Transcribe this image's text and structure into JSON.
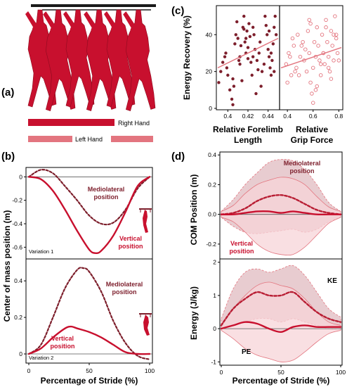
{
  "figure": {
    "colors": {
      "red": "#c8102e",
      "dark_red": "#7d1f2c",
      "pink": "#e3757f",
      "light_pink": "#f4c4c8",
      "band_dark": "#d6a3aa",
      "band_light": "#f7d4d8",
      "grid": "#000000"
    }
  },
  "panel_a": {
    "label": "(a)",
    "legend": {
      "right_hand": "Right Hand",
      "left_hand": "Left Hand"
    }
  },
  "panel_b": {
    "label": "(b)",
    "ylabel": "Center of mass position (m)",
    "xlabel": "Percentage of Stride (%)",
    "top": {
      "variation": "Variation 1",
      "annot_ml": [
        "Mediolateral",
        "position"
      ],
      "annot_vert": [
        "Vertical",
        "position"
      ],
      "yticks": [
        "0",
        "-0.2",
        "-0.4",
        "-0.6"
      ]
    },
    "bottom": {
      "variation": "Variation 2",
      "annot_ml": [
        "Mediolateral",
        "position"
      ],
      "annot_vert": [
        "Vertical",
        "position"
      ],
      "yticks": [
        "0",
        "0.2",
        "0.4"
      ]
    },
    "xticks": [
      "0",
      "50",
      "100"
    ]
  },
  "panel_c": {
    "label": "(c)",
    "ylabel": "Energy Recovery (%)",
    "xlabel_left": [
      "Relative Forelimb",
      "Length"
    ],
    "xlabel_right": [
      "Relative",
      "Grip Force"
    ],
    "yticks": [
      "0",
      "20",
      "40"
    ],
    "xticks_left": [
      "0.4",
      "0.42",
      "0.44"
    ],
    "xticks_right": [
      "0.4",
      "0.6",
      "0.8"
    ]
  },
  "panel_d": {
    "label": "(d)",
    "xlabel": "Percentage of Stride (%)",
    "top": {
      "ylabel": "COM Position (m)",
      "annot_ml": [
        "Mediolateral",
        "position"
      ],
      "annot_vert": [
        "Vertical",
        "position"
      ],
      "yticks": [
        "0.4",
        "0.2",
        "0.0",
        "-0.2"
      ]
    },
    "bottom": {
      "ylabel": "Energy (J/kg)",
      "annot_ke": "KE",
      "annot_pe": "PE",
      "yticks": [
        "2",
        "1",
        "0",
        "-1"
      ]
    },
    "xticks": [
      "0",
      "50",
      "100"
    ]
  },
  "chart_data": [
    {
      "type": "line",
      "panel": "b-top",
      "xlabel": "Percentage of Stride (%)",
      "ylabel": "Center of mass position (m)",
      "xlim": [
        0,
        100
      ],
      "ylim": [
        -0.7,
        0.08
      ],
      "series": [
        {
          "name": "Mediolateral position",
          "x": [
            0,
            10,
            20,
            30,
            40,
            50,
            60,
            70,
            80,
            90,
            100
          ],
          "y": [
            0,
            0.06,
            0.03,
            -0.08,
            -0.2,
            -0.33,
            -0.4,
            -0.39,
            -0.28,
            -0.1,
            0
          ]
        },
        {
          "name": "Vertical position",
          "x": [
            0,
            10,
            20,
            30,
            40,
            50,
            55,
            60,
            70,
            80,
            90,
            100
          ],
          "y": [
            0,
            -0.02,
            -0.12,
            -0.28,
            -0.46,
            -0.62,
            -0.65,
            -0.63,
            -0.5,
            -0.3,
            -0.08,
            0
          ]
        }
      ]
    },
    {
      "type": "line",
      "panel": "b-bottom",
      "xlabel": "Percentage of Stride (%)",
      "ylabel": "Center of mass position (m)",
      "xlim": [
        0,
        100
      ],
      "ylim": [
        -0.05,
        0.52
      ],
      "series": [
        {
          "name": "Mediolateral position",
          "x": [
            0,
            10,
            20,
            30,
            40,
            45,
            50,
            60,
            70,
            80,
            90,
            100
          ],
          "y": [
            0,
            0.05,
            0.2,
            0.36,
            0.46,
            0.47,
            0.45,
            0.34,
            0.18,
            0.06,
            -0.01,
            -0.03
          ]
        },
        {
          "name": "Vertical position",
          "x": [
            0,
            10,
            20,
            30,
            35,
            40,
            50,
            60,
            70,
            80,
            90,
            100
          ],
          "y": [
            0,
            0.03,
            0.09,
            0.14,
            0.15,
            0.14,
            0.12,
            0.09,
            0.05,
            0.01,
            0,
            0
          ]
        }
      ]
    },
    {
      "type": "scatter",
      "panel": "c-left",
      "xlabel": "Relative Forelimb Length",
      "ylabel": "Energy Recovery (%)",
      "xlim": [
        0.39,
        0.45
      ],
      "ylim": [
        0,
        55
      ],
      "x": [
        0.391,
        0.393,
        0.395,
        0.397,
        0.398,
        0.399,
        0.4,
        0.402,
        0.404,
        0.405,
        0.406,
        0.407,
        0.408,
        0.409,
        0.41,
        0.411,
        0.412,
        0.413,
        0.414,
        0.415,
        0.416,
        0.416,
        0.417,
        0.418,
        0.419,
        0.42,
        0.42,
        0.421,
        0.422,
        0.423,
        0.424,
        0.425,
        0.426,
        0.427,
        0.428,
        0.429,
        0.43,
        0.431,
        0.432,
        0.434,
        0.436,
        0.437,
        0.438,
        0.439,
        0.44,
        0.441,
        0.442,
        0.443,
        0.444,
        0.445,
        0.446,
        0.447,
        0.448,
        0.443,
        0.446,
        0.405,
        0.412,
        0.418,
        0.425,
        0.433,
        0.441
      ],
      "y": [
        14,
        20,
        25,
        28,
        30,
        22,
        18,
        10,
        5,
        2,
        12,
        35,
        40,
        47,
        38,
        26,
        28,
        34,
        15,
        44,
        50,
        43,
        36,
        30,
        42,
        27,
        33,
        46,
        39,
        25,
        18,
        44,
        40,
        32,
        8,
        26,
        21,
        30,
        36,
        20,
        24,
        50,
        45,
        40,
        32,
        28,
        22,
        18,
        26,
        35,
        44,
        50,
        40,
        30,
        20,
        16,
        24,
        38,
        28,
        12,
        42
      ],
      "trend": {
        "x": [
          0.39,
          0.45
        ],
        "y": [
          22,
          38
        ]
      }
    },
    {
      "type": "scatter",
      "panel": "c-right",
      "xlabel": "Relative Grip Force",
      "ylabel": "Energy Recovery (%)",
      "xlim": [
        0.35,
        0.82
      ],
      "ylim": [
        0,
        55
      ],
      "x": [
        0.39,
        0.41,
        0.43,
        0.45,
        0.47,
        0.48,
        0.5,
        0.52,
        0.53,
        0.55,
        0.56,
        0.57,
        0.58,
        0.59,
        0.6,
        0.6,
        0.61,
        0.62,
        0.63,
        0.64,
        0.65,
        0.66,
        0.67,
        0.68,
        0.69,
        0.7,
        0.71,
        0.72,
        0.73,
        0.74,
        0.75,
        0.76,
        0.77,
        0.78,
        0.79,
        0.4,
        0.44,
        0.49,
        0.54,
        0.58,
        0.62,
        0.66,
        0.7,
        0.74,
        0.78,
        0.42,
        0.46,
        0.51,
        0.57,
        0.63,
        0.68,
        0.72,
        0.76,
        0.8
      ],
      "y": [
        24,
        30,
        18,
        34,
        22,
        40,
        28,
        36,
        26,
        20,
        42,
        30,
        14,
        8,
        3,
        22,
        36,
        28,
        44,
        34,
        26,
        18,
        40,
        30,
        24,
        48,
        36,
        28,
        20,
        42,
        34,
        26,
        50,
        40,
        30,
        14,
        38,
        18,
        32,
        46,
        10,
        24,
        44,
        16,
        38,
        28,
        20,
        34,
        48,
        12,
        30,
        22,
        40,
        26
      ],
      "trend": {
        "x": [
          0.35,
          0.82
        ],
        "y": [
          22,
          33
        ]
      }
    },
    {
      "type": "area",
      "panel": "d-top",
      "xlabel": "Percentage of Stride (%)",
      "ylabel": "COM Position (m)",
      "xlim": [
        0,
        100
      ],
      "ylim": [
        -0.3,
        0.42
      ],
      "x": [
        0,
        10,
        20,
        30,
        40,
        50,
        60,
        70,
        80,
        90,
        100
      ],
      "series": [
        {
          "name": "Mediolateral position",
          "style": "dashed",
          "mean": [
            0,
            0.01,
            0.04,
            0.09,
            0.12,
            0.13,
            0.11,
            0.07,
            0.03,
            0.01,
            0
          ],
          "upper": [
            0.02,
            0.1,
            0.2,
            0.28,
            0.35,
            0.37,
            0.36,
            0.3,
            0.2,
            0.08,
            0.02
          ],
          "lower": [
            -0.02,
            -0.08,
            -0.12,
            -0.13,
            -0.12,
            -0.11,
            -0.1,
            -0.12,
            -0.1,
            -0.05,
            -0.02
          ]
        },
        {
          "name": "Vertical position",
          "style": "solid",
          "mean": [
            0,
            0,
            0.01,
            0.02,
            0.02,
            0.01,
            0.02,
            0.01,
            0,
            0,
            0
          ],
          "upper": [
            0.02,
            0.06,
            0.14,
            0.2,
            0.23,
            0.25,
            0.24,
            0.2,
            0.12,
            0.05,
            0.02
          ],
          "lower": [
            -0.02,
            -0.05,
            -0.12,
            -0.2,
            -0.25,
            -0.27,
            -0.27,
            -0.22,
            -0.14,
            -0.06,
            -0.02
          ]
        }
      ]
    },
    {
      "type": "area",
      "panel": "d-bottom",
      "xlabel": "Percentage of Stride (%)",
      "ylabel": "Energy (J/kg)",
      "xlim": [
        0,
        100
      ],
      "ylim": [
        -1.1,
        2.1
      ],
      "x": [
        0,
        10,
        20,
        30,
        40,
        50,
        60,
        70,
        80,
        90,
        100
      ],
      "series": [
        {
          "name": "KE",
          "style": "dashed",
          "mean": [
            0.1,
            0.6,
            0.9,
            1.1,
            1.0,
            1.0,
            1.1,
            0.8,
            0.5,
            0.3,
            0.2
          ],
          "upper": [
            0.3,
            1.2,
            1.7,
            1.8,
            1.7,
            1.8,
            1.9,
            1.6,
            1.1,
            0.6,
            0.35
          ],
          "lower": [
            0,
            0.1,
            0.2,
            0.3,
            0.3,
            0.2,
            0.3,
            0.2,
            0.1,
            0,
            0
          ]
        },
        {
          "name": "PE",
          "style": "solid",
          "mean": [
            0,
            0.1,
            0.2,
            0.15,
            0.0,
            -0.1,
            0.05,
            0.1,
            0.05,
            0.05,
            0.05
          ],
          "upper": [
            0.1,
            0.6,
            1.0,
            1.3,
            1.4,
            1.3,
            1.2,
            0.9,
            0.5,
            0.2,
            0.1
          ],
          "lower": [
            -0.05,
            -0.3,
            -0.6,
            -0.8,
            -0.9,
            -1.0,
            -0.95,
            -0.7,
            -0.4,
            -0.15,
            -0.05
          ]
        }
      ]
    }
  ]
}
